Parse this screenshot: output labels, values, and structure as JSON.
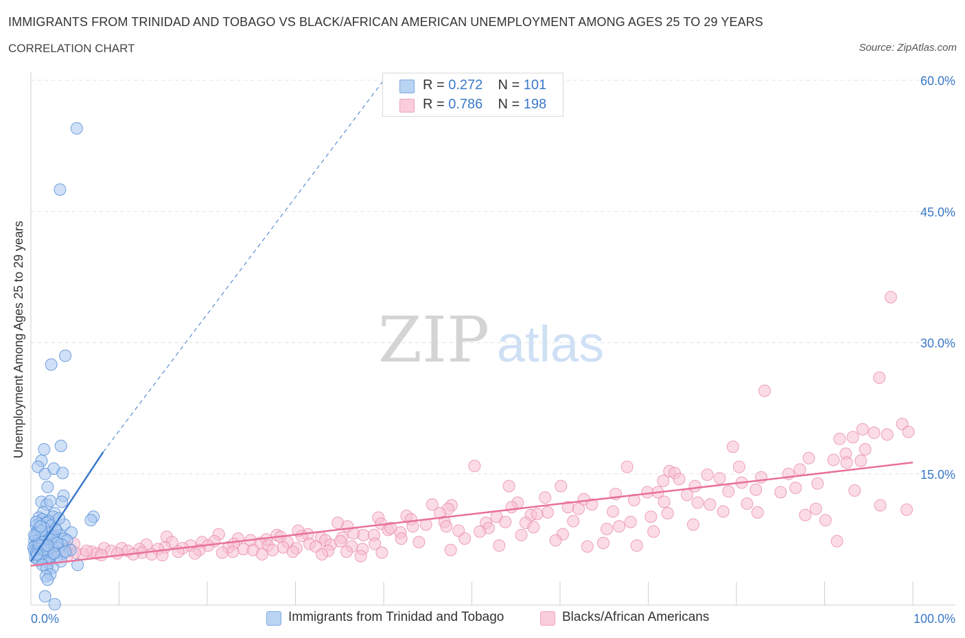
{
  "header": {
    "title": "IMMIGRANTS FROM TRINIDAD AND TOBAGO VS BLACK/AFRICAN AMERICAN UNEMPLOYMENT AMONG AGES 25 TO 29 YEARS",
    "subtitle": "CORRELATION CHART",
    "source": "Source: ZipAtlas.com"
  },
  "watermark": {
    "zip": "ZIP",
    "atlas": "atlas"
  },
  "legend": {
    "r_label": "R =",
    "n_label": "N =",
    "rows": [
      {
        "r": "0.272",
        "n": "101"
      },
      {
        "r": "0.786",
        "n": "198"
      }
    ]
  },
  "colors": {
    "series_blue_fill": "#a9c8f0",
    "series_blue_stroke": "#5b90d8",
    "series_blue_line": "#3a78c9",
    "series_pink_fill": "#f7c0d2",
    "series_pink_stroke": "#e88aab",
    "series_pink_line": "#e8709a",
    "axis_text": "#3a78c9",
    "grid": "#e2e2e2"
  },
  "chart_data": {
    "type": "scatter",
    "xlabel": "",
    "ylabel": "Unemployment Among Ages 25 to 29 years",
    "xlim": [
      0,
      100
    ],
    "ylim": [
      0,
      60
    ],
    "x_tick_labels": [
      "0.0%",
      "100.0%"
    ],
    "y_tick_labels": [
      "15.0%",
      "30.0%",
      "45.0%",
      "60.0%"
    ],
    "y_ticks": [
      15,
      30,
      45,
      60
    ],
    "grid": true,
    "legend_placement": "top-center",
    "series": [
      {
        "name": "Immigrants from Trinidad and Tobago",
        "color_key": "blue",
        "trend": {
          "x": [
            0,
            8.2
          ],
          "y": [
            5.0,
            17.5
          ],
          "dashed_extension_to": [
            40,
            60
          ]
        },
        "points": [
          [
            5.2,
            54.5
          ],
          [
            3.3,
            47.5
          ],
          [
            3.9,
            28.5
          ],
          [
            2.3,
            27.5
          ],
          [
            1.5,
            17.8
          ],
          [
            3.4,
            18.2
          ],
          [
            1.2,
            16.5
          ],
          [
            0.8,
            15.8
          ],
          [
            1.6,
            15.0
          ],
          [
            2.6,
            15.6
          ],
          [
            3.6,
            15.1
          ],
          [
            1.9,
            13.5
          ],
          [
            3.7,
            12.5
          ],
          [
            1.2,
            11.8
          ],
          [
            1.8,
            11.5
          ],
          [
            3.5,
            11.8
          ],
          [
            2.2,
            11.9
          ],
          [
            2.7,
            10.5
          ],
          [
            1.4,
            10.6
          ],
          [
            0.9,
            10.0
          ],
          [
            1.3,
            9.8
          ],
          [
            2.5,
            10.1
          ],
          [
            7.1,
            10.1
          ],
          [
            2.0,
            9.6
          ],
          [
            1.0,
            9.3
          ],
          [
            1.8,
            9.4
          ],
          [
            3.8,
            9.2
          ],
          [
            0.6,
            9.1
          ],
          [
            2.3,
            9.1
          ],
          [
            6.8,
            9.7
          ],
          [
            1.5,
            8.8
          ],
          [
            0.8,
            8.6
          ],
          [
            2.9,
            8.5
          ],
          [
            1.9,
            8.3
          ],
          [
            4.6,
            8.3
          ],
          [
            0.7,
            8.2
          ],
          [
            1.4,
            8.0
          ],
          [
            3.3,
            8.0
          ],
          [
            2.6,
            7.9
          ],
          [
            0.5,
            7.8
          ],
          [
            1.7,
            7.7
          ],
          [
            3.8,
            7.6
          ],
          [
            0.9,
            7.5
          ],
          [
            2.1,
            7.5
          ],
          [
            4.1,
            7.4
          ],
          [
            0.4,
            7.3
          ],
          [
            1.3,
            7.2
          ],
          [
            2.8,
            7.2
          ],
          [
            0.7,
            7.0
          ],
          [
            1.9,
            7.0
          ],
          [
            3.5,
            6.9
          ],
          [
            0.5,
            6.8
          ],
          [
            1.1,
            6.7
          ],
          [
            2.4,
            6.6
          ],
          [
            0.3,
            6.6
          ],
          [
            1.6,
            6.5
          ],
          [
            3.1,
            6.5
          ],
          [
            0.8,
            6.4
          ],
          [
            2.0,
            6.3
          ],
          [
            4.5,
            6.3
          ],
          [
            0.4,
            6.2
          ],
          [
            1.4,
            6.1
          ],
          [
            2.7,
            6.1
          ],
          [
            0.6,
            6.0
          ],
          [
            1.8,
            5.9
          ],
          [
            3.6,
            5.9
          ],
          [
            1.0,
            5.8
          ],
          [
            2.3,
            5.7
          ],
          [
            0.7,
            5.6
          ],
          [
            1.5,
            5.5
          ],
          [
            2.9,
            5.5
          ],
          [
            0.5,
            5.4
          ],
          [
            1.2,
            5.3
          ],
          [
            2.1,
            5.2
          ],
          [
            0.9,
            5.1
          ],
          [
            1.7,
            5.0
          ],
          [
            3.4,
            5.0
          ],
          [
            5.3,
            4.6
          ],
          [
            2.0,
            4.8
          ],
          [
            1.3,
            4.6
          ],
          [
            2.5,
            4.3
          ],
          [
            1.8,
            4.2
          ],
          [
            2.2,
            3.5
          ],
          [
            1.7,
            3.3
          ],
          [
            1.9,
            2.9
          ],
          [
            1.6,
            1.0
          ],
          [
            2.7,
            0.1
          ],
          [
            0.6,
            9.5
          ],
          [
            1.2,
            8.5
          ],
          [
            2.4,
            7.8
          ],
          [
            3.0,
            7.1
          ],
          [
            0.9,
            6.9
          ],
          [
            1.5,
            6.3
          ],
          [
            2.6,
            5.9
          ],
          [
            0.4,
            8.0
          ],
          [
            3.9,
            6.1
          ],
          [
            1.1,
            9.0
          ],
          [
            2.8,
            8.7
          ],
          [
            0.7,
            5.8
          ],
          [
            1.9,
            6.8
          ],
          [
            3.2,
            9.9
          ]
        ]
      },
      {
        "name": "Blacks/African Americans",
        "color_key": "pink",
        "trend": {
          "x": [
            0,
            100
          ],
          "y": [
            4.5,
            16.3
          ]
        },
        "points": [
          [
            97.5,
            35.2
          ],
          [
            96.2,
            26.0
          ],
          [
            83.2,
            24.5
          ],
          [
            98.8,
            20.7
          ],
          [
            99.5,
            19.8
          ],
          [
            95.6,
            19.7
          ],
          [
            94.3,
            20.1
          ],
          [
            97.1,
            19.5
          ],
          [
            91.7,
            19.0
          ],
          [
            93.2,
            19.2
          ],
          [
            79.6,
            18.1
          ],
          [
            94.6,
            17.8
          ],
          [
            92.4,
            17.3
          ],
          [
            88.2,
            16.8
          ],
          [
            91.0,
            16.6
          ],
          [
            94.1,
            16.5
          ],
          [
            92.5,
            16.3
          ],
          [
            50.3,
            15.9
          ],
          [
            67.6,
            15.8
          ],
          [
            80.3,
            15.8
          ],
          [
            87.2,
            15.5
          ],
          [
            72.4,
            15.3
          ],
          [
            73.0,
            15.1
          ],
          [
            85.9,
            15.0
          ],
          [
            76.7,
            14.9
          ],
          [
            78.1,
            14.5
          ],
          [
            82.8,
            14.6
          ],
          [
            73.5,
            14.4
          ],
          [
            71.7,
            14.2
          ],
          [
            80.6,
            14.0
          ],
          [
            89.2,
            13.9
          ],
          [
            75.3,
            13.6
          ],
          [
            86.7,
            13.4
          ],
          [
            54.2,
            13.6
          ],
          [
            60.1,
            13.6
          ],
          [
            82.2,
            13.2
          ],
          [
            79.1,
            13.0
          ],
          [
            93.4,
            13.1
          ],
          [
            69.9,
            12.9
          ],
          [
            71.1,
            12.9
          ],
          [
            85.0,
            12.9
          ],
          [
            74.4,
            12.6
          ],
          [
            66.3,
            12.7
          ],
          [
            58.3,
            12.3
          ],
          [
            62.7,
            12.1
          ],
          [
            68.4,
            12.0
          ],
          [
            71.8,
            11.8
          ],
          [
            75.6,
            11.7
          ],
          [
            55.2,
            11.7
          ],
          [
            77.0,
            11.5
          ],
          [
            63.6,
            11.5
          ],
          [
            81.2,
            11.6
          ],
          [
            96.3,
            11.4
          ],
          [
            54.5,
            11.2
          ],
          [
            45.5,
            11.5
          ],
          [
            47.7,
            11.4
          ],
          [
            60.9,
            11.2
          ],
          [
            62.1,
            11.0
          ],
          [
            89.0,
            11.0
          ],
          [
            47.3,
            11.0
          ],
          [
            46.4,
            10.5
          ],
          [
            66.0,
            10.7
          ],
          [
            72.2,
            10.5
          ],
          [
            82.4,
            10.6
          ],
          [
            58.6,
            10.6
          ],
          [
            78.5,
            10.7
          ],
          [
            99.3,
            10.9
          ],
          [
            87.8,
            10.3
          ],
          [
            39.4,
            10.0
          ],
          [
            42.6,
            10.2
          ],
          [
            56.7,
            10.3
          ],
          [
            57.4,
            10.4
          ],
          [
            52.8,
            10.1
          ],
          [
            90.1,
            9.7
          ],
          [
            43.1,
            9.8
          ],
          [
            46.9,
            9.5
          ],
          [
            61.5,
            9.6
          ],
          [
            51.6,
            9.4
          ],
          [
            53.8,
            9.5
          ],
          [
            56.1,
            9.4
          ],
          [
            68.0,
            9.5
          ],
          [
            34.8,
            9.4
          ],
          [
            39.7,
            9.3
          ],
          [
            44.8,
            9.2
          ],
          [
            43.3,
            9.0
          ],
          [
            47.1,
            9.0
          ],
          [
            35.9,
            9.0
          ],
          [
            57.0,
            8.9
          ],
          [
            51.9,
            8.8
          ],
          [
            65.3,
            8.7
          ],
          [
            40.5,
            8.6
          ],
          [
            48.5,
            8.5
          ],
          [
            50.9,
            8.4
          ],
          [
            41.9,
            8.3
          ],
          [
            70.6,
            8.4
          ],
          [
            60.3,
            8.1
          ],
          [
            36.6,
            8.2
          ],
          [
            37.7,
            8.0
          ],
          [
            31.4,
            8.1
          ],
          [
            38.9,
            8.0
          ],
          [
            55.6,
            8.0
          ],
          [
            27.9,
            8.0
          ],
          [
            21.3,
            8.1
          ],
          [
            30.7,
            7.9
          ],
          [
            28.3,
            7.8
          ],
          [
            32.9,
            7.7
          ],
          [
            35.3,
            7.7
          ],
          [
            23.5,
            7.6
          ],
          [
            42.0,
            7.6
          ],
          [
            26.7,
            7.5
          ],
          [
            24.9,
            7.4
          ],
          [
            33.4,
            7.4
          ],
          [
            15.4,
            7.8
          ],
          [
            20.8,
            7.3
          ],
          [
            19.4,
            7.2
          ],
          [
            29.1,
            7.2
          ],
          [
            26.0,
            7.1
          ],
          [
            16.0,
            7.2
          ],
          [
            23.0,
            7.0
          ],
          [
            31.6,
            7.0
          ],
          [
            39.0,
            7.0
          ],
          [
            34.0,
            6.9
          ],
          [
            13.1,
            6.9
          ],
          [
            18.1,
            6.8
          ],
          [
            20.1,
            6.8
          ],
          [
            26.9,
            6.8
          ],
          [
            32.3,
            6.7
          ],
          [
            36.4,
            6.7
          ],
          [
            15.2,
            6.6
          ],
          [
            22.4,
            6.6
          ],
          [
            28.6,
            6.6
          ],
          [
            30.1,
            6.5
          ],
          [
            17.2,
            6.5
          ],
          [
            24.1,
            6.4
          ],
          [
            37.6,
            6.4
          ],
          [
            12.3,
            6.4
          ],
          [
            19.1,
            6.3
          ],
          [
            25.2,
            6.3
          ],
          [
            8.3,
            6.5
          ],
          [
            10.3,
            6.5
          ],
          [
            14.4,
            6.4
          ],
          [
            27.4,
            6.3
          ],
          [
            33.7,
            6.2
          ],
          [
            9.1,
            6.2
          ],
          [
            11.0,
            6.2
          ],
          [
            16.7,
            6.1
          ],
          [
            22.9,
            6.1
          ],
          [
            29.7,
            6.1
          ],
          [
            35.8,
            6.1
          ],
          [
            6.9,
            6.1
          ],
          [
            12.6,
            6.0
          ],
          [
            21.7,
            6.0
          ],
          [
            18.6,
            5.9
          ],
          [
            7.5,
            5.9
          ],
          [
            9.8,
            5.9
          ],
          [
            13.7,
            5.8
          ],
          [
            5.9,
            5.8
          ],
          [
            11.6,
            5.8
          ],
          [
            26.2,
            5.8
          ],
          [
            33.0,
            5.8
          ],
          [
            5.0,
            6.0
          ],
          [
            6.3,
            6.2
          ],
          [
            8.0,
            5.7
          ],
          [
            14.9,
            5.7
          ],
          [
            37.4,
            5.6
          ],
          [
            4.3,
            6.5
          ],
          [
            3.2,
            6.0
          ],
          [
            2.5,
            5.9
          ],
          [
            3.8,
            6.8
          ],
          [
            2.1,
            6.9
          ],
          [
            1.4,
            6.2
          ],
          [
            4.9,
            7.0
          ],
          [
            1.9,
            6.4
          ],
          [
            3.0,
            6.6
          ],
          [
            0.8,
            5.9
          ],
          [
            4.1,
            5.6
          ],
          [
            39.8,
            6.0
          ],
          [
            47.6,
            6.3
          ],
          [
            53.1,
            6.8
          ],
          [
            49.2,
            7.6
          ],
          [
            44.0,
            7.2
          ],
          [
            59.5,
            7.4
          ],
          [
            64.9,
            7.1
          ],
          [
            68.7,
            6.8
          ],
          [
            63.1,
            6.7
          ],
          [
            75.1,
            9.2
          ],
          [
            91.4,
            7.3
          ],
          [
            70.3,
            10.1
          ],
          [
            66.7,
            9.0
          ],
          [
            30.3,
            8.5
          ],
          [
            35.1,
            7.3
          ],
          [
            40.8,
            8.8
          ]
        ]
      }
    ]
  },
  "bottom_legend": [
    {
      "label": "Immigrants from Trinidad and Tobago"
    },
    {
      "label": "Blacks/African Americans"
    }
  ]
}
